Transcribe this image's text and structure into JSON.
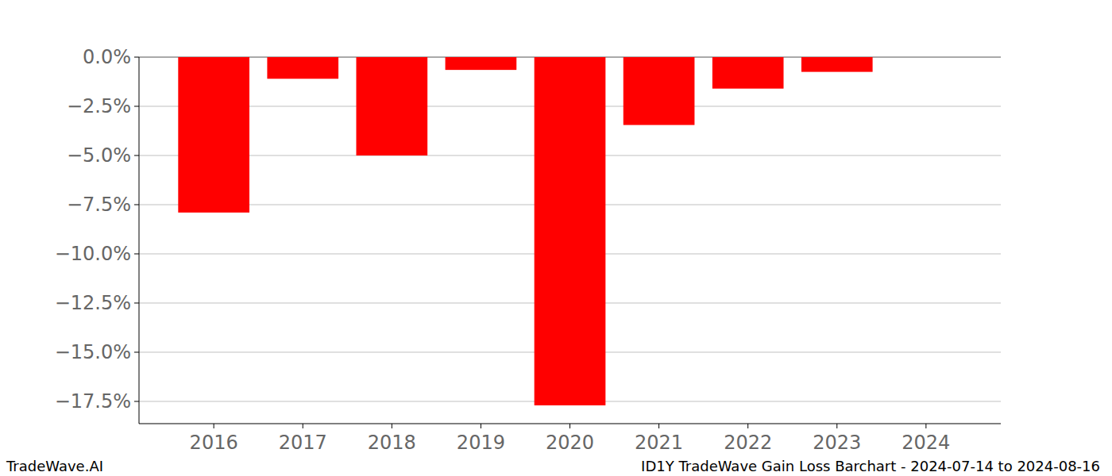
{
  "chart_data": {
    "type": "bar",
    "title": "ID1Y TradeWave Gain Loss Barchart - 2024-07-14 to 2024-08-16",
    "annotations": [
      "TradeWave.AI"
    ],
    "categories": [
      "2016",
      "2017",
      "2018",
      "2019",
      "2020",
      "2021",
      "2022",
      "2023",
      "2024"
    ],
    "values": [
      -7.9,
      -1.1,
      -5.0,
      -0.65,
      -17.7,
      -3.45,
      -1.6,
      -0.75,
      null
    ],
    "color": "#ff0000",
    "ylim": [
      -18.63,
      0
    ],
    "yticks": [
      {
        "value": 0,
        "label": "0.0%"
      },
      {
        "value": -2.5,
        "label": "−2.5%"
      },
      {
        "value": -5,
        "label": "−5.0%"
      },
      {
        "value": -7.5,
        "label": "−7.5%"
      },
      {
        "value": -10,
        "label": "−10.0%"
      },
      {
        "value": -12.5,
        "label": "−12.5%"
      },
      {
        "value": -15,
        "label": "−15.0%"
      },
      {
        "value": -17.5,
        "label": "−17.5%"
      }
    ],
    "grid": true
  }
}
